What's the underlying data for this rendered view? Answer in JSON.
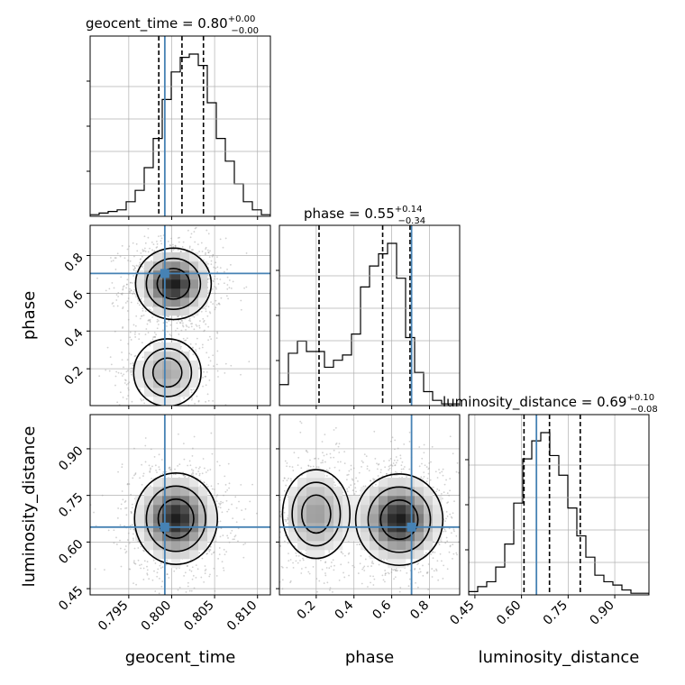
{
  "chart_data": {
    "type": "corner",
    "parameters": [
      "geocent_time",
      "phase",
      "luminosity_distance"
    ],
    "ranges": [
      [
        0.7905,
        0.8115
      ],
      [
        0.005,
        0.96
      ],
      [
        0.43,
        1.01
      ]
    ],
    "ticks": [
      {
        "values": [
          0.795,
          0.8,
          0.805,
          0.81
        ],
        "labels": [
          "0.795",
          "0.800",
          "0.805",
          "0.810"
        ]
      },
      {
        "values": [
          0.2,
          0.4,
          0.6,
          0.8
        ],
        "labels": [
          "0.2",
          "0.4",
          "0.6",
          "0.8"
        ]
      },
      {
        "values": [
          0.45,
          0.6,
          0.75,
          0.9
        ],
        "labels": [
          "0.45",
          "0.60",
          "0.75",
          "0.90"
        ]
      }
    ],
    "truths": [
      0.7992,
      0.705,
      0.648
    ],
    "titles": [
      {
        "name": "geocent_time",
        "median": "0.80",
        "plus": "+0.00",
        "minus": "−0.00"
      },
      {
        "name": "phase",
        "median": "0.55",
        "plus": "+0.14",
        "minus": "−0.34"
      },
      {
        "name": "luminosity_distance",
        "median": "0.69",
        "plus": "+0.10",
        "minus": "−0.08"
      }
    ],
    "quantiles": [
      [
        0.7985,
        0.8012,
        0.8037
      ],
      [
        0.215,
        0.552,
        0.697
      ],
      [
        0.608,
        0.69,
        0.789
      ]
    ],
    "histograms": [
      {
        "edges_start": 0.7905,
        "bin_width": 0.00105,
        "counts": [
          1,
          2,
          3,
          4,
          9,
          16,
          30,
          48,
          72,
          89,
          98,
          100,
          93,
          70,
          48,
          34,
          20,
          9,
          4,
          1
        ]
      },
      {
        "edges_start": 0.005,
        "bin_width": 0.04775,
        "counts": [
          12,
          30,
          37,
          31,
          31,
          22,
          26,
          29,
          41,
          68,
          80,
          87,
          93,
          73,
          39,
          19,
          8,
          3,
          1,
          1
        ]
      },
      {
        "edges_start": 0.43,
        "bin_width": 0.029,
        "counts": [
          2,
          5,
          8,
          17,
          31,
          56,
          83,
          94,
          99,
          85,
          73,
          53,
          36,
          23,
          12,
          8,
          6,
          3,
          1,
          1
        ]
      }
    ],
    "pair_blobs": {
      "1-0": [
        {
          "mx": 0.8002,
          "my": 0.65,
          "sx": 0.0021,
          "sy": 0.09,
          "w": 1.0
        },
        {
          "mx": 0.7995,
          "my": 0.18,
          "sx": 0.0022,
          "sy": 0.1,
          "w": 0.45
        }
      ],
      "2-0": [
        {
          "mx": 0.8005,
          "my": 0.675,
          "sx": 0.0023,
          "sy": 0.07,
          "w": 1.0
        }
      ],
      "2-1": [
        {
          "mx": 0.64,
          "my": 0.672,
          "sx": 0.11,
          "sy": 0.07,
          "w": 1.0
        },
        {
          "mx": 0.2,
          "my": 0.69,
          "sx": 0.1,
          "sy": 0.08,
          "w": 0.5
        }
      ]
    },
    "colors": {
      "truth": "#4682b4",
      "hist": "#000000",
      "grid": "#b0b0b0",
      "samples": "#999999"
    },
    "grid": true
  }
}
